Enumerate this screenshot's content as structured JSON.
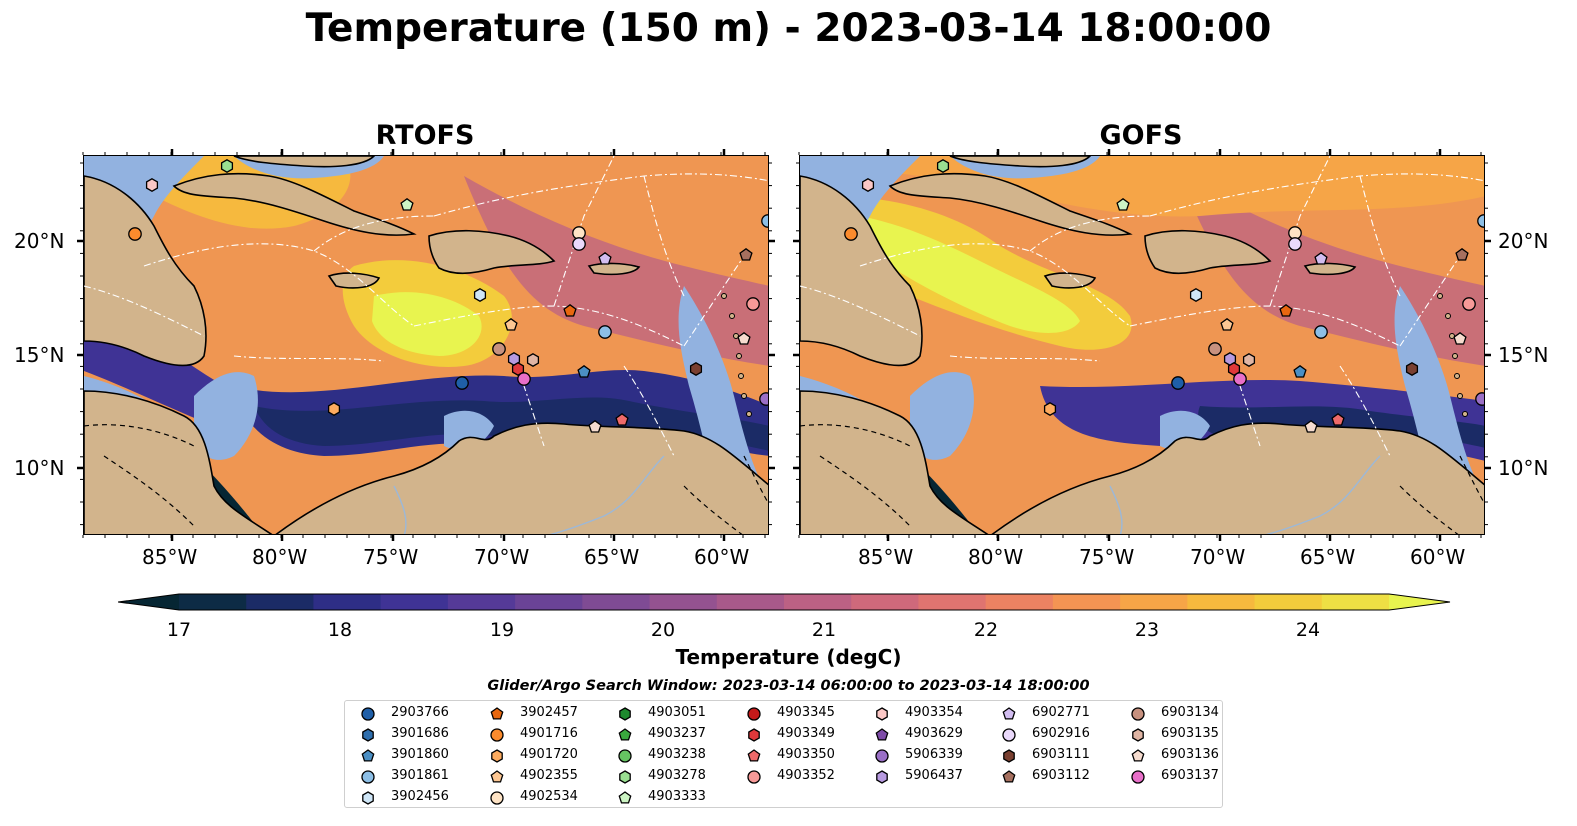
{
  "title": "Temperature (150 m) - 2023-03-14 18:00:00",
  "panels": [
    {
      "title": "RTOFS"
    },
    {
      "title": "GOFS"
    }
  ],
  "axes": {
    "lon_labels": [
      "85°W",
      "80°W",
      "75°W",
      "70°W",
      "65°W",
      "60°W"
    ],
    "lat_labels": [
      "20°N",
      "15°N",
      "10°N"
    ]
  },
  "colorbar": {
    "label": "Temperature (degC)",
    "ticks": [
      "17",
      "18",
      "19",
      "20",
      "21",
      "22",
      "23",
      "24"
    ],
    "min": 16.5,
    "max": 24.5,
    "colors": [
      "#062633",
      "#0d2b45",
      "#1b2b66",
      "#2e2e86",
      "#3f3395",
      "#553a98",
      "#6a4396",
      "#7f4b94",
      "#945290",
      "#a8598a",
      "#bc6184",
      "#cf697b",
      "#df7470",
      "#ec8262",
      "#f49453",
      "#f6a547",
      "#f6b93e",
      "#f3cc3c",
      "#eedf44",
      "#e8f44f"
    ]
  },
  "legend": {
    "title": "Glider/Argo Search Window: 2023-03-14 06:00:00 to 2023-03-14 18:00:00",
    "columns": [
      [
        {
          "id": "2903766",
          "marker": "circle",
          "color": "#1f5fa8"
        },
        {
          "id": "3901686",
          "marker": "hexagon",
          "color": "#2f6fae"
        },
        {
          "id": "3901860",
          "marker": "pentagon",
          "color": "#4b8fc4"
        },
        {
          "id": "3901861",
          "marker": "circle",
          "color": "#8dbfe6"
        },
        {
          "id": "3902456",
          "marker": "hexagon",
          "color": "#cfe6f7"
        }
      ],
      [
        {
          "id": "3902457",
          "marker": "pentagon",
          "color": "#e8670f"
        },
        {
          "id": "4901716",
          "marker": "circle",
          "color": "#fb8b2d"
        },
        {
          "id": "4901720",
          "marker": "hexagon",
          "color": "#fdab5f"
        },
        {
          "id": "4902355",
          "marker": "pentagon",
          "color": "#fdc793"
        },
        {
          "id": "4902534",
          "marker": "circle",
          "color": "#fee3c5"
        }
      ],
      [
        {
          "id": "4903051",
          "marker": "hexagon",
          "color": "#1e8a2e"
        },
        {
          "id": "4903237",
          "marker": "pentagon",
          "color": "#3aa83e"
        },
        {
          "id": "4903238",
          "marker": "circle",
          "color": "#66c462"
        },
        {
          "id": "4903278",
          "marker": "hexagon",
          "color": "#9adf91"
        },
        {
          "id": "4903333",
          "marker": "pentagon",
          "color": "#cdf5c4"
        }
      ],
      [
        {
          "id": "4903345",
          "marker": "circle",
          "color": "#c41a1a"
        },
        {
          "id": "4903349",
          "marker": "hexagon",
          "color": "#e0383a"
        },
        {
          "id": "4903350",
          "marker": "pentagon",
          "color": "#ee6a6a"
        },
        {
          "id": "4903352",
          "marker": "circle",
          "color": "#f79a98"
        }
      ],
      [
        {
          "id": "4903354",
          "marker": "hexagon",
          "color": "#fcc8c6"
        },
        {
          "id": "4903629",
          "marker": "pentagon",
          "color": "#7e4ba8"
        },
        {
          "id": "5906339",
          "marker": "circle",
          "color": "#9a6fc6"
        },
        {
          "id": "5906437",
          "marker": "hexagon",
          "color": "#b79ae0"
        }
      ],
      [
        {
          "id": "6902771",
          "marker": "pentagon",
          "color": "#d2bdf0"
        },
        {
          "id": "6902916",
          "marker": "circle",
          "color": "#ead9fb"
        },
        {
          "id": "6903111",
          "marker": "hexagon",
          "color": "#7a4031"
        },
        {
          "id": "6903112",
          "marker": "pentagon",
          "color": "#a6705f"
        }
      ],
      [
        {
          "id": "6903134",
          "marker": "circle",
          "color": "#c7917f"
        },
        {
          "id": "6903135",
          "marker": "hexagon",
          "color": "#e0b5a4"
        },
        {
          "id": "6903136",
          "marker": "pentagon",
          "color": "#f6dccf"
        },
        {
          "id": "6903137",
          "marker": "circle",
          "color": "#e86fc9"
        }
      ]
    ]
  },
  "colors": {
    "land": "#d2b48c",
    "shelf": "#92b2e0",
    "deep_cold": "#062633",
    "warm": "#f2a14a",
    "hot": "#eef04c"
  }
}
